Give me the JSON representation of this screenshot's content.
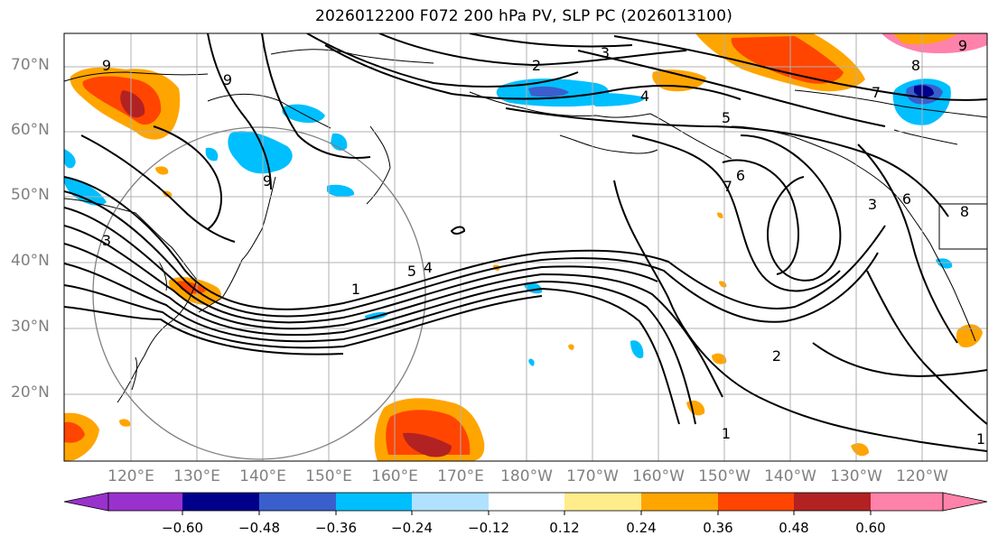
{
  "title": "2026012200 F072 200 hPa PV, SLP PC (2026013100)",
  "map": {
    "lat_labels": [
      "70°N",
      "60°N",
      "50°N",
      "40°N",
      "30°N",
      "20°N"
    ],
    "lon_labels": [
      "120°E",
      "130°E",
      "140°E",
      "150°E",
      "160°E",
      "170°E",
      "180°W",
      "170°W",
      "160°W",
      "150°W",
      "140°W",
      "130°W",
      "120°W"
    ],
    "contour_labels": [
      "9",
      "9",
      "9",
      "3",
      "3",
      "2",
      "5",
      "4",
      "7",
      "6",
      "7",
      "8",
      "9",
      "3",
      "5",
      "6",
      "4",
      "1",
      "2",
      "1",
      "1",
      "8"
    ]
  },
  "colorbar": {
    "ticks": [
      "−0.60",
      "−0.48",
      "−0.36",
      "−0.24",
      "−0.12",
      "0.12",
      "0.24",
      "0.36",
      "0.48",
      "0.60"
    ],
    "colors": [
      "#9932cc",
      "#00008b",
      "#3a5fcd",
      "#00bfff",
      "#b0e2ff",
      "#ffffff",
      "#ffec8b",
      "#ffa500",
      "#ff4500",
      "#b22222",
      "#ff82ab"
    ]
  }
}
